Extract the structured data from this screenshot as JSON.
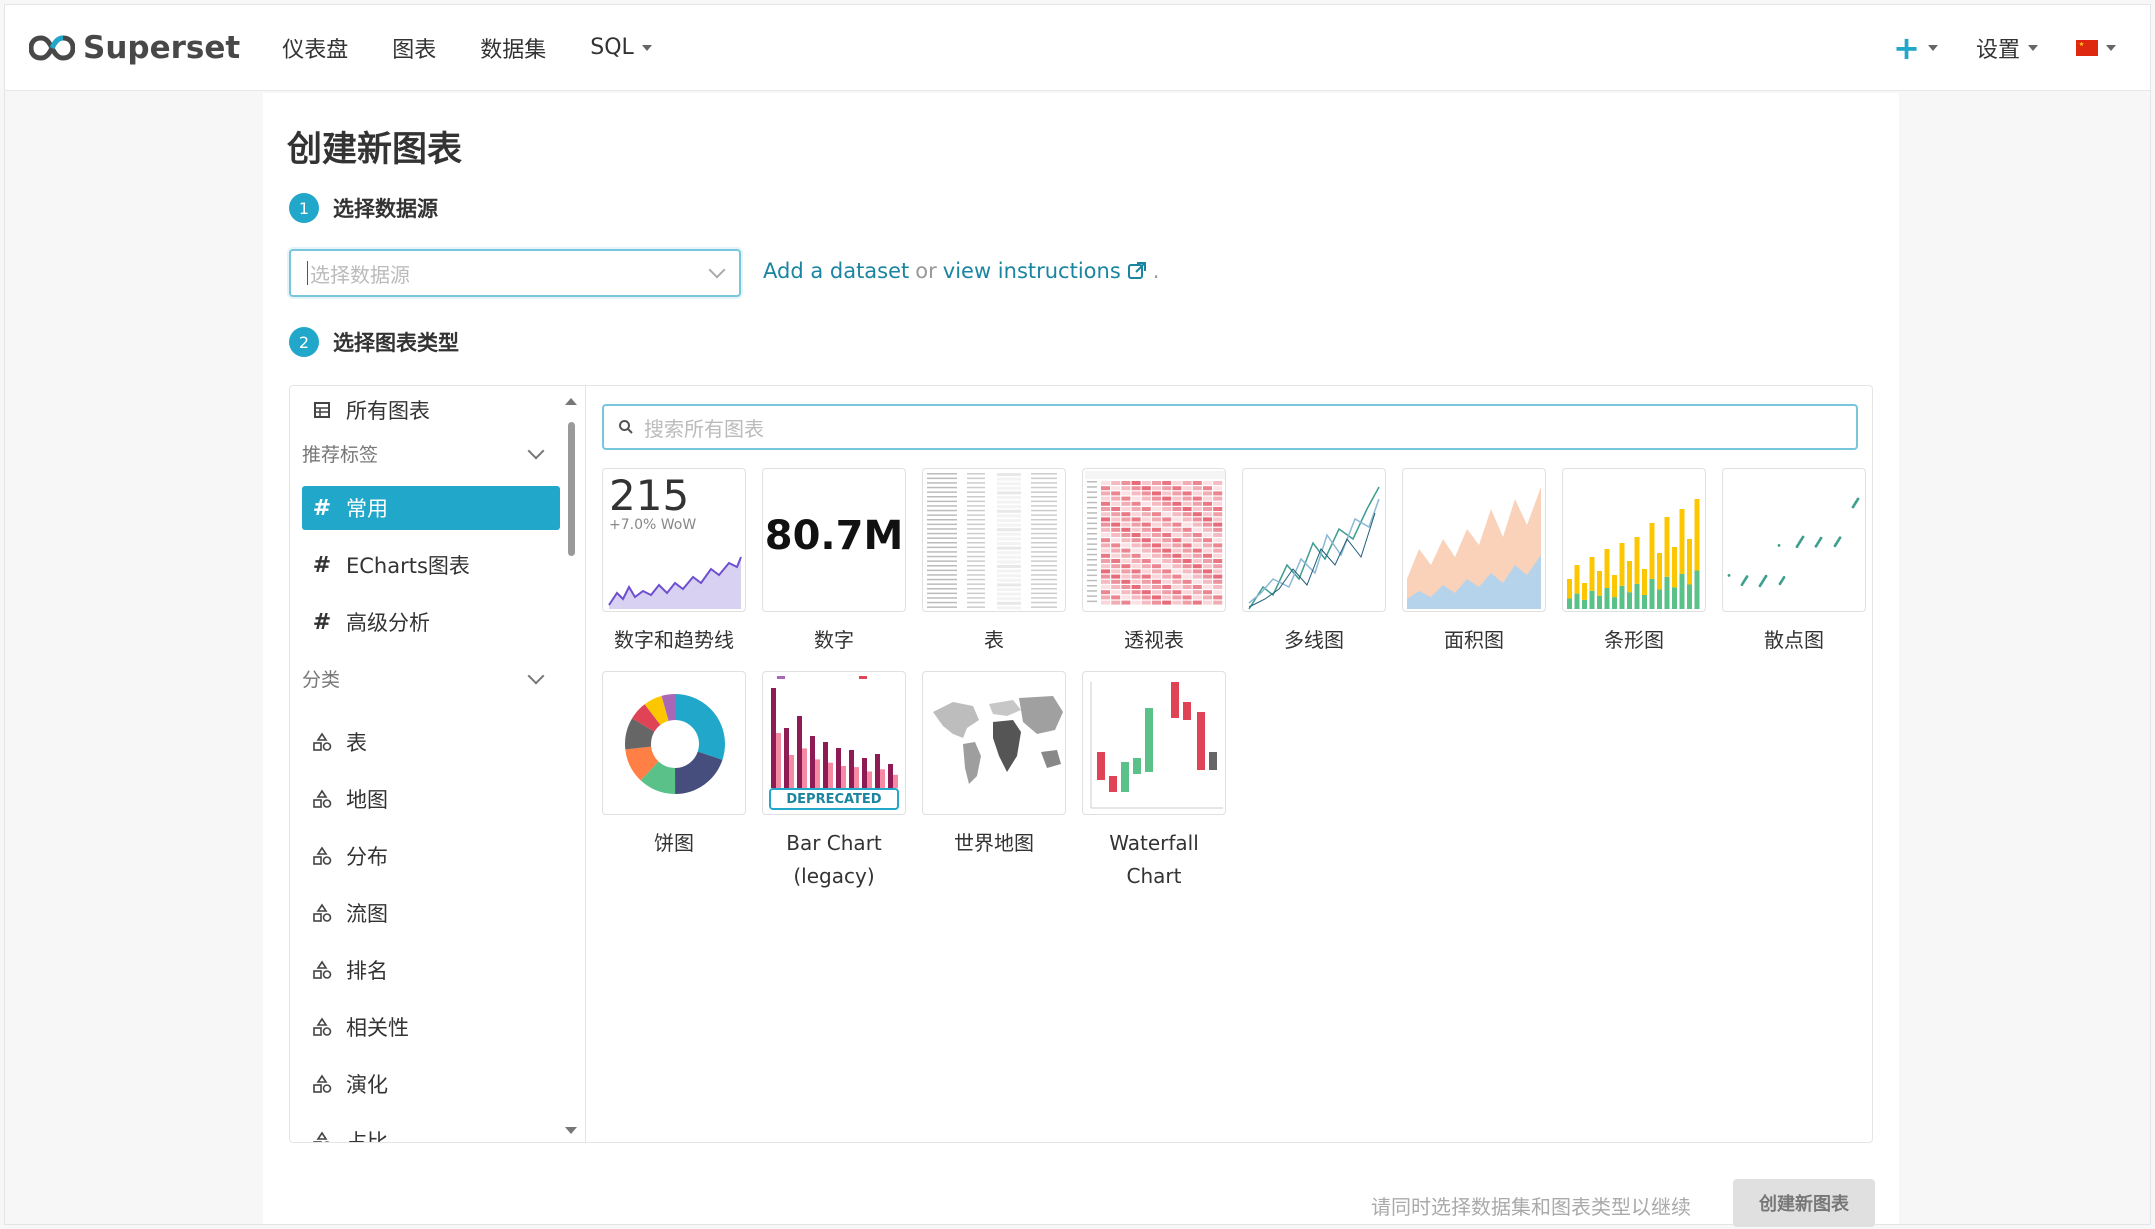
{
  "app": {
    "name": "Superset"
  },
  "nav": {
    "items": [
      "仪表盘",
      "图表",
      "数据集"
    ],
    "sql": "SQL",
    "plus": "+",
    "settings": "设置"
  },
  "page": {
    "title": "创建新图表",
    "step1": {
      "num": "1",
      "label": "选择数据源"
    },
    "step2": {
      "num": "2",
      "label": "选择图表类型"
    },
    "datasource_placeholder": "选择数据源",
    "help": {
      "add": "Add a dataset",
      "or": "or",
      "view": "view instructions",
      "period": "."
    }
  },
  "sidebar": {
    "all": "所有图表",
    "recommended_header": "推荐标签",
    "tags": [
      "常用",
      "ECharts图表",
      "高级分析"
    ],
    "category_header": "分类",
    "categories": [
      "表",
      "地图",
      "分布",
      "流图",
      "排名",
      "相关性",
      "演化",
      "占比"
    ]
  },
  "search": {
    "placeholder": "搜索所有图表"
  },
  "charts": [
    {
      "label": "数字和趋势线",
      "thumb_big": "215",
      "thumb_small": "+7.0% WoW"
    },
    {
      "label": "数字",
      "thumb_big": "80.7M"
    },
    {
      "label": "表"
    },
    {
      "label": "透视表"
    },
    {
      "label": "多线图"
    },
    {
      "label": "面积图"
    },
    {
      "label": "条形图"
    },
    {
      "label": "散点图"
    },
    {
      "label": "饼图"
    },
    {
      "label": "Bar Chart (legacy)",
      "badge": "DEPRECATED"
    },
    {
      "label": "世界地图"
    },
    {
      "label": "Waterfall Chart"
    }
  ],
  "footer": {
    "message": "请同时选择数据集和图表类型以继续",
    "create": "创建新图表"
  },
  "colors": {
    "accent": "#20a7c9",
    "link": "#1a85a0"
  }
}
